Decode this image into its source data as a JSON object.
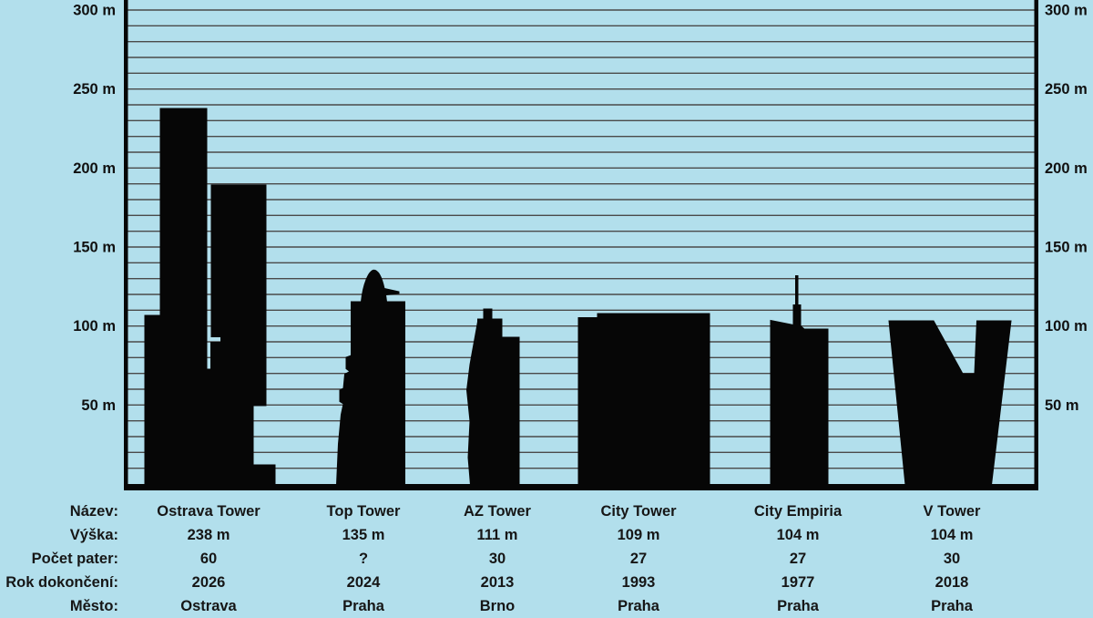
{
  "colors": {
    "background": "#b2dfec",
    "silhouette": "#060606",
    "gridline": "#4a4a4a",
    "text": "#161616"
  },
  "axis": {
    "unit": "m",
    "max": 300,
    "grid_step": 10,
    "tick_step": 50,
    "ticks": [
      {
        "value": 50,
        "label": "50 m"
      },
      {
        "value": 100,
        "label": "100 m"
      },
      {
        "value": 150,
        "label": "150 m"
      },
      {
        "value": 200,
        "label": "200 m"
      },
      {
        "value": 250,
        "label": "250 m"
      },
      {
        "value": 300,
        "label": "300 m"
      }
    ]
  },
  "chart_data": {
    "type": "bar",
    "subtype": "pictorial-building-silhouettes",
    "categories": [
      "Ostrava Tower",
      "Top Tower",
      "AZ Tower",
      "City Tower",
      "City Empiria",
      "V Tower"
    ],
    "series": [
      {
        "name": "Výška (m)",
        "values": [
          238,
          135,
          111,
          109,
          104,
          104
        ]
      },
      {
        "name": "Počet pater",
        "values": [
          "60",
          "?",
          "30",
          "27",
          "27",
          "30"
        ]
      },
      {
        "name": "Rok dokončení",
        "values": [
          "2026",
          "2024",
          "2013",
          "1993",
          "1977",
          "2018"
        ]
      },
      {
        "name": "Město",
        "values": [
          "Ostrava",
          "Praha",
          "Brno",
          "Praha",
          "Praha",
          "Praha"
        ]
      }
    ],
    "title": "",
    "xlabel": "",
    "ylabel": "",
    "ylim": [
      0,
      306
    ],
    "grid": "on",
    "y_tick_labels_both_sides": [
      "50 m",
      "100 m",
      "150 m",
      "200 m",
      "250 m",
      "300 m"
    ],
    "legend": "none"
  },
  "table": {
    "row_labels": [
      "Název:",
      "Výška:",
      "Počet pater:",
      "Rok dokončení:",
      "Město:"
    ],
    "columns": [
      {
        "name": "Ostrava Tower",
        "height": "238 m",
        "floors": "60",
        "year": "2026",
        "city": "Ostrava"
      },
      {
        "name": "Top Tower",
        "height": "135 m",
        "floors": "?",
        "year": "2024",
        "city": "Praha"
      },
      {
        "name": "AZ Tower",
        "height": "111 m",
        "floors": "30",
        "year": "2013",
        "city": "Brno"
      },
      {
        "name": "City Tower",
        "height": "109 m",
        "floors": "27",
        "year": "1993",
        "city": "Praha"
      },
      {
        "name": "City Empiria",
        "height": "104 m",
        "floors": "27",
        "year": "1977",
        "city": "Praha"
      },
      {
        "name": "V Tower",
        "height": "104 m",
        "floors": "30",
        "year": "2018",
        "city": "Praha"
      }
    ]
  }
}
